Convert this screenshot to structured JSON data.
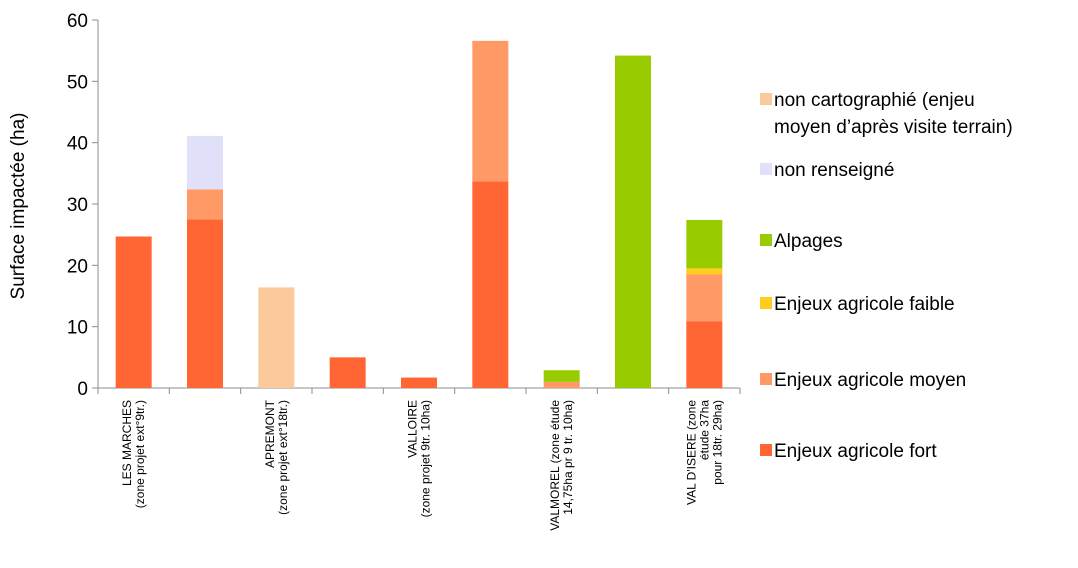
{
  "chart_data": {
    "type": "bar",
    "stacked": true,
    "title": "",
    "xlabel": "",
    "ylabel": "Surface impactée (ha)",
    "ylim": [
      0,
      60
    ],
    "yticks": [
      0,
      10,
      20,
      30,
      40,
      50,
      60
    ],
    "grid": false,
    "legend_position": "right",
    "categories": [
      [
        "LES MARCHES",
        "(zone projet ext°9tr.)"
      ],
      [],
      [
        "APREMONT",
        "(zone projet ext°18tr.)"
      ],
      [],
      [
        "VALLOIRE",
        "(zone projet 9tr. 10ha)"
      ],
      [],
      [
        "VALMOREL (zone étude",
        "14,75ha  pr 9 tr. 10ha)"
      ],
      [],
      [
        "VAL D'ISERE (zone",
        "étude 37ha",
        "pour 18tr. 29ha)"
      ]
    ],
    "series": [
      {
        "name": "Enjeux agricole fort",
        "color": "#ff6633",
        "values": [
          24.7,
          27.5,
          0,
          5.0,
          1.7,
          33.7,
          0,
          0,
          10.9
        ]
      },
      {
        "name": "Enjeux agricole moyen",
        "color": "#ff9966",
        "values": [
          0,
          4.9,
          0,
          0,
          0,
          22.9,
          1.0,
          0,
          7.6
        ]
      },
      {
        "name": "Enjeux agricole faible",
        "color": "#ffcc22",
        "values": [
          0,
          0,
          0,
          0,
          0,
          0,
          0,
          0,
          1.0
        ]
      },
      {
        "name": "Alpages",
        "color": "#99cc00",
        "values": [
          0,
          0,
          0,
          0,
          0,
          0,
          1.9,
          54.2,
          7.9
        ]
      },
      {
        "name": "non renseigné",
        "color": "#e0e0f8",
        "values": [
          0,
          8.7,
          0,
          0,
          0,
          0,
          0,
          0,
          0
        ]
      },
      {
        "name": [
          "non cartographié (enjeu",
          "moyen d’après visite terrain)"
        ],
        "color": "#fbc99b",
        "values": [
          0,
          0,
          16.4,
          0,
          0,
          0,
          0,
          0,
          0
        ]
      }
    ]
  }
}
